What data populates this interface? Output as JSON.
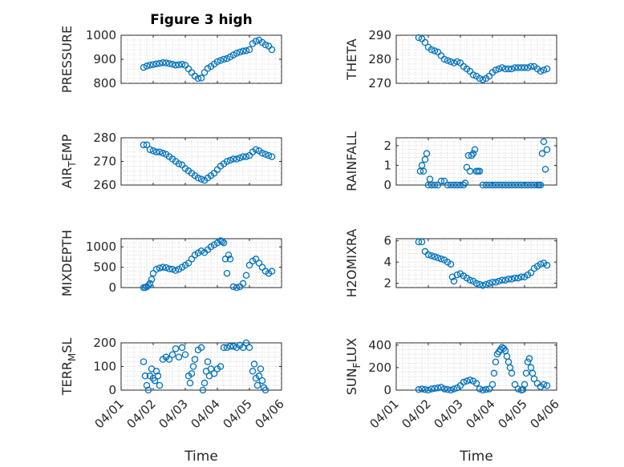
{
  "chart_data": [
    {
      "type": "scatter",
      "title": "Figure 3 high",
      "ylabel": "PRESSURE",
      "ylim": [
        800,
        1000
      ],
      "yticks": [
        800,
        900,
        1000
      ],
      "xlim": [
        0,
        5
      ],
      "xticks": [
        "04/01",
        "04/02",
        "04/03",
        "04/04",
        "04/05",
        "04/06"
      ],
      "grid": true,
      "marker_color": "#0072BD",
      "series": [
        {
          "x": [
            0.7,
            0.8,
            0.9,
            1.0,
            1.1,
            1.2,
            1.3,
            1.4,
            1.5,
            1.6,
            1.7,
            1.8,
            1.9,
            2.0,
            2.1,
            2.2,
            2.3,
            2.4,
            2.5,
            2.6,
            2.7,
            2.8,
            2.9,
            3.0,
            3.1,
            3.2,
            3.3,
            3.4,
            3.5,
            3.6,
            3.7,
            3.8,
            3.9,
            4.0,
            4.1,
            4.2,
            4.3,
            4.4,
            4.5,
            4.6,
            4.7
          ],
          "y": [
            866,
            872,
            876,
            878,
            881,
            883,
            886,
            885,
            882,
            879,
            876,
            877,
            879,
            875,
            860,
            845,
            830,
            820,
            822,
            845,
            862,
            870,
            880,
            890,
            895,
            900,
            903,
            910,
            918,
            925,
            930,
            934,
            936,
            940,
            965,
            975,
            980,
            970,
            960,
            955,
            940
          ]
        }
      ]
    },
    {
      "type": "scatter",
      "ylabel": "THETA",
      "ylim": [
        270,
        290
      ],
      "yticks": [
        270,
        280,
        290
      ],
      "xlim": [
        0,
        5
      ],
      "xticks": [
        "04/01",
        "04/02",
        "04/03",
        "04/04",
        "04/05",
        "04/06"
      ],
      "grid": true,
      "marker_color": "#0072BD",
      "series": [
        {
          "x": [
            0.7,
            0.8,
            0.9,
            1.0,
            1.1,
            1.2,
            1.3,
            1.4,
            1.5,
            1.6,
            1.7,
            1.8,
            1.9,
            2.0,
            2.1,
            2.2,
            2.3,
            2.4,
            2.5,
            2.6,
            2.7,
            2.8,
            2.9,
            3.0,
            3.1,
            3.2,
            3.3,
            3.4,
            3.5,
            3.6,
            3.7,
            3.8,
            3.9,
            4.0,
            4.1,
            4.2,
            4.3,
            4.4,
            4.5,
            4.6,
            4.7
          ],
          "y": [
            289,
            288.5,
            287,
            285,
            284,
            283.5,
            283,
            281.5,
            280,
            279.5,
            279,
            278.5,
            279,
            278.5,
            277,
            276,
            275,
            273.5,
            273,
            272,
            271.5,
            272,
            273,
            274.5,
            275.5,
            276,
            276.5,
            276,
            276,
            276,
            276.5,
            276.5,
            276.5,
            276.5,
            276.5,
            277,
            277,
            276,
            275,
            275.5,
            276
          ]
        }
      ]
    },
    {
      "type": "scatter",
      "ylabel": "AIR_TEMP",
      "ylim": [
        260,
        280
      ],
      "yticks": [
        260,
        270,
        280
      ],
      "xlim": [
        0,
        5
      ],
      "xticks": [
        "04/01",
        "04/02",
        "04/03",
        "04/04",
        "04/05",
        "04/06"
      ],
      "grid": true,
      "marker_color": "#0072BD",
      "series": [
        {
          "x": [
            0.7,
            0.8,
            0.9,
            1.0,
            1.1,
            1.2,
            1.3,
            1.4,
            1.5,
            1.6,
            1.7,
            1.8,
            1.9,
            2.0,
            2.1,
            2.2,
            2.3,
            2.4,
            2.5,
            2.6,
            2.7,
            2.8,
            2.9,
            3.0,
            3.1,
            3.2,
            3.3,
            3.4,
            3.5,
            3.6,
            3.7,
            3.8,
            3.9,
            4.0,
            4.1,
            4.2,
            4.3,
            4.4,
            4.5,
            4.6,
            4.7
          ],
          "y": [
            277,
            277,
            275,
            274.5,
            274,
            274,
            273.5,
            273,
            272,
            271,
            270,
            269,
            268.5,
            267,
            266,
            265,
            264,
            263,
            262.5,
            262,
            263,
            264,
            265,
            266.5,
            268,
            269,
            270,
            270.5,
            271,
            271,
            271.5,
            272,
            272,
            272.5,
            274,
            275,
            274.5,
            273.5,
            273,
            272.5,
            272
          ]
        }
      ]
    },
    {
      "type": "scatter",
      "ylabel": "RAINFALL",
      "ylim": [
        0,
        2.4
      ],
      "yticks": [
        0,
        1,
        2
      ],
      "xlim": [
        0,
        5
      ],
      "xticks": [
        "04/01",
        "04/02",
        "04/03",
        "04/04",
        "04/05",
        "04/06"
      ],
      "grid": true,
      "marker_color": "#0072BD",
      "series": [
        {
          "x": [
            0.75,
            0.8,
            0.85,
            0.9,
            0.95,
            1.0,
            1.05,
            1.1,
            1.2,
            1.3,
            1.4,
            1.5,
            1.6,
            1.7,
            1.8,
            1.9,
            2.0,
            2.1,
            2.15,
            2.2,
            2.25,
            2.3,
            2.35,
            2.4,
            2.45,
            2.5,
            2.55,
            2.6,
            2.7,
            2.8,
            2.9,
            3.0,
            3.1,
            3.2,
            3.3,
            3.4,
            3.5,
            3.6,
            3.7,
            3.8,
            3.9,
            4.0,
            4.1,
            4.2,
            4.3,
            4.4,
            4.45,
            4.5,
            4.55,
            4.6,
            4.65,
            4.7
          ],
          "y": [
            0.7,
            1.0,
            0.7,
            1.3,
            1.6,
            0,
            0.3,
            0,
            0,
            0,
            0.2,
            0.2,
            0,
            0,
            0,
            0,
            0,
            0,
            0.1,
            0.9,
            1.5,
            0.7,
            1.5,
            1.6,
            1.8,
            0.7,
            0.7,
            0.7,
            0,
            0,
            0,
            0,
            0,
            0,
            0,
            0,
            0,
            0,
            0,
            0,
            0,
            0,
            0,
            0,
            0,
            0,
            0,
            0,
            1.6,
            2.2,
            0.8,
            1.8
          ]
        }
      ]
    },
    {
      "type": "scatter",
      "ylabel": "MIXDEPTH",
      "ylim": [
        0,
        1200
      ],
      "yticks": [
        0,
        500,
        1000
      ],
      "xlim": [
        0,
        5
      ],
      "xticks": [
        "04/01",
        "04/02",
        "04/03",
        "04/04",
        "04/05",
        "04/06"
      ],
      "grid": true,
      "marker_color": "#0072BD",
      "series": [
        {
          "x": [
            0.7,
            0.75,
            0.8,
            0.85,
            0.9,
            0.95,
            1.0,
            1.1,
            1.2,
            1.3,
            1.4,
            1.5,
            1.6,
            1.7,
            1.8,
            1.9,
            2.0,
            2.1,
            2.2,
            2.3,
            2.4,
            2.5,
            2.6,
            2.7,
            2.8,
            2.9,
            3.0,
            3.1,
            3.15,
            3.2,
            3.25,
            3.3,
            3.35,
            3.4,
            3.5,
            3.6,
            3.7,
            3.8,
            3.9,
            4.0,
            4.1,
            4.2,
            4.3,
            4.4,
            4.5,
            4.6,
            4.7
          ],
          "y": [
            0,
            0,
            20,
            50,
            100,
            200,
            350,
            450,
            480,
            500,
            490,
            460,
            450,
            420,
            450,
            500,
            550,
            600,
            700,
            800,
            850,
            900,
            860,
            930,
            1000,
            1050,
            1100,
            1150,
            1130,
            1100,
            700,
            350,
            800,
            700,
            20,
            0,
            20,
            100,
            300,
            550,
            650,
            700,
            600,
            500,
            400,
            350,
            400
          ]
        }
      ]
    },
    {
      "type": "scatter",
      "ylabel": "H2OMIXRA",
      "ylim": [
        1.6,
        6.2
      ],
      "yticks": [
        2,
        4,
        6
      ],
      "xlim": [
        0,
        5
      ],
      "xticks": [
        "04/01",
        "04/02",
        "04/03",
        "04/04",
        "04/05",
        "04/06"
      ],
      "grid": true,
      "marker_color": "#0072BD",
      "series": [
        {
          "x": [
            0.7,
            0.8,
            0.9,
            1.0,
            1.1,
            1.2,
            1.3,
            1.4,
            1.5,
            1.6,
            1.7,
            1.75,
            1.8,
            1.9,
            2.0,
            2.1,
            2.2,
            2.3,
            2.4,
            2.5,
            2.6,
            2.7,
            2.8,
            2.9,
            3.0,
            3.1,
            3.2,
            3.3,
            3.4,
            3.5,
            3.6,
            3.7,
            3.8,
            3.9,
            4.0,
            4.1,
            4.2,
            4.3,
            4.4,
            4.5,
            4.6,
            4.7
          ],
          "y": [
            5.9,
            5.9,
            5.0,
            4.7,
            4.6,
            4.5,
            4.4,
            4.3,
            4.2,
            4.0,
            3.8,
            2.6,
            2.2,
            2.8,
            2.9,
            2.7,
            2.5,
            2.3,
            2.2,
            2.0,
            1.9,
            1.8,
            1.9,
            2.0,
            2.1,
            2.1,
            2.2,
            2.3,
            2.3,
            2.4,
            2.4,
            2.5,
            2.5,
            2.6,
            2.6,
            2.8,
            3.0,
            3.4,
            3.6,
            3.8,
            3.9,
            3.7
          ]
        }
      ]
    },
    {
      "type": "scatter",
      "ylabel": "TERR_MSL",
      "ylim": [
        0,
        200
      ],
      "yticks": [
        0,
        100,
        200
      ],
      "xlim": [
        0,
        5
      ],
      "xticks": [
        "04/01",
        "04/02",
        "04/03",
        "04/04",
        "04/05",
        "04/06"
      ],
      "grid": true,
      "marker_color": "#0072BD",
      "series": [
        {
          "x": [
            0.7,
            0.75,
            0.8,
            0.85,
            0.9,
            0.95,
            1.0,
            1.05,
            1.1,
            1.15,
            1.2,
            1.3,
            1.4,
            1.5,
            1.6,
            1.7,
            1.8,
            1.9,
            2.0,
            2.1,
            2.15,
            2.2,
            2.25,
            2.3,
            2.4,
            2.5,
            2.55,
            2.6,
            2.65,
            2.7,
            2.75,
            2.8,
            2.9,
            3.0,
            3.1,
            3.2,
            3.3,
            3.4,
            3.5,
            3.6,
            3.7,
            3.8,
            3.9,
            4.0,
            4.1,
            4.15,
            4.2,
            4.25,
            4.3,
            4.35,
            4.4,
            4.45,
            4.5
          ],
          "y": [
            120,
            60,
            20,
            0,
            60,
            90,
            50,
            40,
            80,
            60,
            20,
            130,
            140,
            130,
            150,
            175,
            140,
            180,
            150,
            60,
            30,
            70,
            100,
            130,
            170,
            180,
            0,
            30,
            80,
            120,
            60,
            90,
            70,
            90,
            100,
            180,
            180,
            185,
            185,
            180,
            190,
            180,
            200,
            180,
            80,
            110,
            50,
            20,
            60,
            90,
            40,
            10,
            0
          ]
        }
      ]
    },
    {
      "type": "scatter",
      "ylabel": "SUN_FLUX",
      "ylim": [
        0,
        420
      ],
      "yticks": [
        0,
        200,
        400
      ],
      "xlim": [
        0,
        5
      ],
      "xticks": [
        "04/01",
        "04/02",
        "04/03",
        "04/04",
        "04/05",
        "04/06"
      ],
      "grid": true,
      "marker_color": "#0072BD",
      "series": [
        {
          "x": [
            0.7,
            0.8,
            0.9,
            1.0,
            1.1,
            1.2,
            1.3,
            1.4,
            1.5,
            1.6,
            1.7,
            1.8,
            1.9,
            2.0,
            2.1,
            2.2,
            2.3,
            2.4,
            2.5,
            2.6,
            2.7,
            2.8,
            2.9,
            3.0,
            3.05,
            3.1,
            3.15,
            3.2,
            3.25,
            3.3,
            3.35,
            3.4,
            3.45,
            3.5,
            3.55,
            3.6,
            3.7,
            3.8,
            3.9,
            3.95,
            4.0,
            4.05,
            4.1,
            4.15,
            4.2,
            4.25,
            4.3,
            4.4,
            4.5,
            4.6,
            4.7
          ],
          "y": [
            5,
            10,
            5,
            0,
            10,
            15,
            20,
            25,
            10,
            5,
            0,
            10,
            20,
            40,
            70,
            80,
            90,
            80,
            60,
            10,
            0,
            5,
            10,
            50,
            150,
            250,
            320,
            340,
            360,
            380,
            370,
            350,
            300,
            250,
            200,
            150,
            50,
            10,
            0,
            5,
            50,
            150,
            250,
            280,
            200,
            150,
            100,
            60,
            30,
            50,
            40
          ]
        }
      ]
    }
  ],
  "xlabel_left": "Time",
  "xlabel_right": "Time"
}
